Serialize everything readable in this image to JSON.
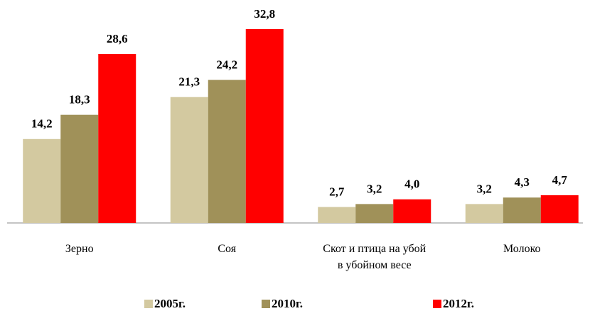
{
  "chart_data": {
    "type": "bar",
    "categories": [
      "Зерно",
      "Соя",
      "Скот и птица на убой\nв убойном весе",
      "Молоко"
    ],
    "series": [
      {
        "name": "2005г.",
        "color": "#d3c9a0",
        "values": [
          14.2,
          21.3,
          2.7,
          3.2
        ],
        "value_labels": [
          "14,2",
          "21,3",
          "2,7",
          "3,2"
        ]
      },
      {
        "name": "2010г.",
        "color": "#a09159",
        "values": [
          18.3,
          24.2,
          3.2,
          4.3
        ],
        "value_labels": [
          "18,3",
          "24,2",
          "3,2",
          "4,3"
        ]
      },
      {
        "name": "2012г.",
        "color": "#ff0000",
        "values": [
          28.6,
          32.8,
          4.0,
          4.7
        ],
        "value_labels": [
          "28,6",
          "32,8",
          "4,0",
          "4,7"
        ]
      }
    ],
    "legend": "bottom"
  }
}
